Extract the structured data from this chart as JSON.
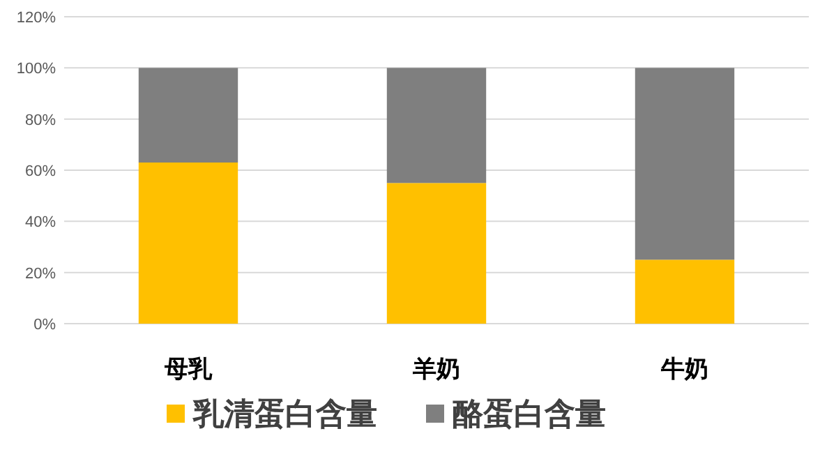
{
  "chart_data": {
    "type": "bar",
    "stacked": true,
    "categories": [
      "母乳",
      "羊奶",
      "牛奶"
    ],
    "series": [
      {
        "name": "乳清蛋白含量",
        "color": "#ffc000",
        "values": [
          63,
          55,
          25
        ]
      },
      {
        "name": "酪蛋白含量",
        "color": "#7f7f7f",
        "values": [
          37,
          45,
          75
        ]
      }
    ],
    "ylim": [
      0,
      120
    ],
    "yticks": [
      {
        "value": 0,
        "label": "0%"
      },
      {
        "value": 20,
        "label": "20%"
      },
      {
        "value": 40,
        "label": "40%"
      },
      {
        "value": 60,
        "label": "60%"
      },
      {
        "value": 80,
        "label": "80%"
      },
      {
        "value": 100,
        "label": "100%"
      },
      {
        "value": 120,
        "label": "120%"
      }
    ],
    "grid": "y",
    "legend": "bottom"
  }
}
